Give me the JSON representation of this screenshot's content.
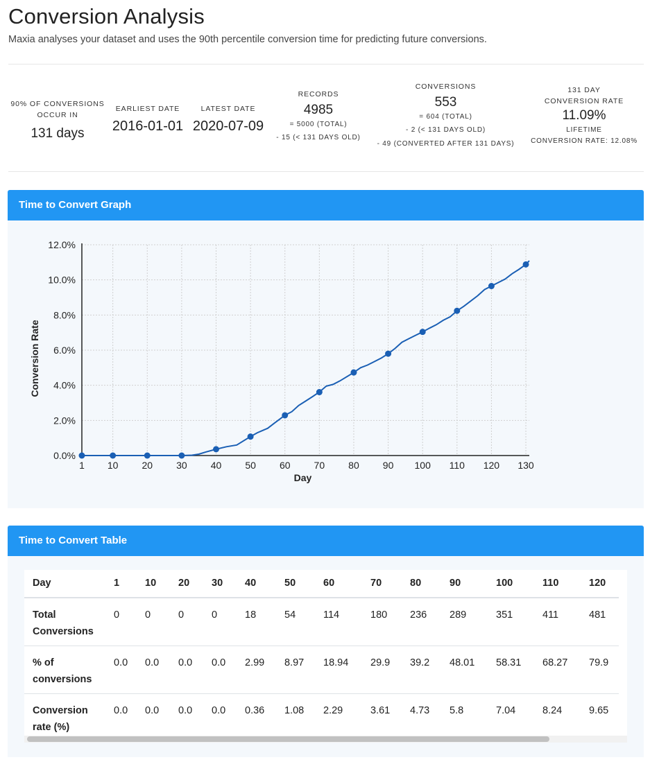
{
  "page": {
    "title": "Conversion Analysis",
    "subtitle": "Maxia analyses your dataset and uses the 90th percentile conversion time for predicting future conversions."
  },
  "stats": {
    "pct90": {
      "label1": "90% OF CONVERSIONS",
      "label2": "OCCUR IN",
      "value": "131 days"
    },
    "earliest": {
      "label": "EARLIEST DATE",
      "value": "2016-01-01"
    },
    "latest": {
      "label": "LATEST DATE",
      "value": "2020-07-09"
    },
    "records": {
      "label": "RECORDS",
      "value": "4985",
      "line1": "= 5000 (TOTAL)",
      "line2": "- 15 (< 131 DAYS OLD)"
    },
    "conversions": {
      "label": "CONVERSIONS",
      "value": "553",
      "line1": "= 604 (TOTAL)",
      "line2": "- 2 (< 131 DAYS OLD)",
      "line3": "- 49 (CONVERTED AFTER 131 DAYS)"
    },
    "rate": {
      "label1": "131 DAY",
      "label2": "CONVERSION RATE",
      "value": "11.09%",
      "line1": "LIFETIME",
      "line2": "CONVERSION RATE: 12.08%"
    }
  },
  "graph_panel": {
    "title": "Time to Convert Graph"
  },
  "table_panel": {
    "title": "Time to Convert Table"
  },
  "colors": {
    "accent": "#2196f3",
    "line": "#1a5fb4",
    "panel_bg": "#f4f8fc"
  },
  "chart_data": {
    "type": "line",
    "xlabel": "Day",
    "ylabel": "Conversion Rate",
    "xlim": [
      1,
      131
    ],
    "ylim": [
      0,
      12
    ],
    "yticks": [
      "0.0%",
      "2.0%",
      "4.0%",
      "6.0%",
      "8.0%",
      "10.0%",
      "12.0%"
    ],
    "xticks": [
      "1",
      "10",
      "20",
      "30",
      "40",
      "50",
      "60",
      "70",
      "80",
      "90",
      "100",
      "110",
      "120",
      "130"
    ],
    "grid": true,
    "series": [
      {
        "name": "Conversion rate (%)",
        "x": [
          1,
          10,
          20,
          30,
          33,
          35,
          37,
          40,
          43,
          46,
          50,
          52,
          55,
          57,
          60,
          62,
          64,
          66,
          68,
          70,
          72,
          74,
          76,
          80,
          82,
          84,
          86,
          88,
          90,
          92,
          94,
          96,
          98,
          100,
          102,
          104,
          106,
          108,
          110,
          112,
          114,
          116,
          118,
          120,
          122,
          124,
          126,
          128,
          130,
          131
        ],
        "y": [
          0.0,
          0.0,
          0.0,
          0.0,
          0.02,
          0.08,
          0.2,
          0.36,
          0.5,
          0.6,
          1.08,
          1.3,
          1.55,
          1.85,
          2.29,
          2.5,
          2.85,
          3.1,
          3.35,
          3.61,
          3.95,
          4.05,
          4.25,
          4.73,
          5.0,
          5.15,
          5.35,
          5.55,
          5.8,
          6.1,
          6.45,
          6.65,
          6.85,
          7.04,
          7.25,
          7.45,
          7.7,
          7.9,
          8.24,
          8.5,
          8.8,
          9.1,
          9.45,
          9.65,
          9.85,
          10.05,
          10.35,
          10.6,
          10.88,
          11.09
        ]
      }
    ],
    "markers": {
      "x": [
        1,
        10,
        20,
        30,
        40,
        50,
        60,
        70,
        80,
        90,
        100,
        110,
        120,
        130
      ],
      "y": [
        0.0,
        0.0,
        0.0,
        0.0,
        0.36,
        1.08,
        2.29,
        3.61,
        4.73,
        5.8,
        7.04,
        8.24,
        9.65,
        10.88
      ]
    }
  },
  "table": {
    "header": [
      "Day",
      "1",
      "10",
      "20",
      "30",
      "40",
      "50",
      "60",
      "70",
      "80",
      "90",
      "100",
      "110",
      "120"
    ],
    "rows": [
      {
        "label": "Total Conversions",
        "values": [
          "0",
          "0",
          "0",
          "0",
          "18",
          "54",
          "114",
          "180",
          "236",
          "289",
          "351",
          "411",
          "481"
        ]
      },
      {
        "label": "% of conversions",
        "values": [
          "0.0",
          "0.0",
          "0.0",
          "0.0",
          "2.99",
          "8.97",
          "18.94",
          "29.9",
          "39.2",
          "48.01",
          "58.31",
          "68.27",
          "79.9"
        ]
      },
      {
        "label": "Conversion rate (%)",
        "values": [
          "0.0",
          "0.0",
          "0.0",
          "0.0",
          "0.36",
          "1.08",
          "2.29",
          "3.61",
          "4.73",
          "5.8",
          "7.04",
          "8.24",
          "9.65"
        ]
      }
    ]
  }
}
